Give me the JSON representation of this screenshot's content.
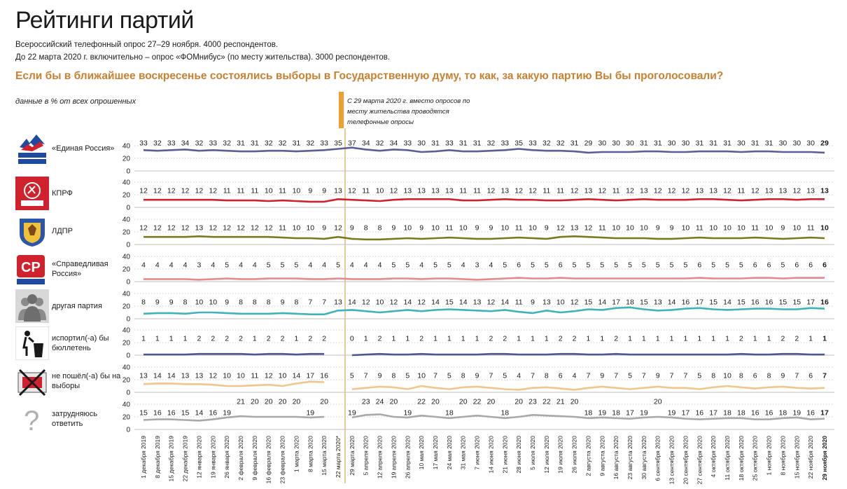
{
  "header": {
    "title": "Рейтинги партий",
    "subtitle_1": "Всероссийский телефонный опрос 27–29 ноября. 4000 респондентов.",
    "subtitle_2": "До 22 марта 2020 г. включительно – опрос «ФОМнибус» (по месту жительства). 3000 респондентов.",
    "question": "Если бы в ближайшее воскресенье состоялись выборы в Государственную думу, то как, за какую партию Вы бы проголосовали?",
    "units": "данные в % от всех опрошенных",
    "method_note": "С 29 марта 2020 г. вместо опросов по месту жительства проводятся телефонные опросы"
  },
  "colors": {
    "vline": "#e8c89a",
    "grid": "#bfbfbf",
    "accent": "#f0a02a"
  },
  "chart_data": {
    "type": "line",
    "x": [
      "1 декабря 2019",
      "8 декабря 2019",
      "15 декабря 2019",
      "22 декабря 2019",
      "12 января 2020",
      "19 января 2020",
      "26 января 2020",
      "2 февраля 2020",
      "9 февраля 2020",
      "16 февраля 2020",
      "23 февраля 2020",
      "1 марта 2020",
      "8 марта 2020",
      "15 марта 2020",
      "22 марта 2020*",
      "29 марта 2020",
      "5 апреля 2020",
      "12 апреля 2020",
      "19 апреля 2020",
      "26 апреля 2020",
      "10 мая 2020",
      "17 мая 2020",
      "24 мая 2020",
      "31 мая 2020",
      "7 июня 2020",
      "14 июня 2020",
      "21 июня 2020",
      "28 июня 2020",
      "5 июля 2020",
      "12 июля 2020",
      "19 июля 2020",
      "26 июля 2020",
      "2 августа 2020",
      "9 августа 2020",
      "16 августа 2020",
      "23 августа 2020",
      "30 августа 2020",
      "6 сентября 2020",
      "13 сентября 2020",
      "20 сентября 2020",
      "27 сентября 2020",
      "4 октября 2020",
      "11 октября 2020",
      "18 октября 2020",
      "25 октября 2020",
      "1 ноября 2020",
      "8 ноября 2020",
      "15 ноября 2020",
      "22 ноября 2020",
      "29 ноября 2020"
    ],
    "break_after": "22 марта 2020*",
    "ylim": [
      0,
      40
    ],
    "yticks": [
      0,
      20,
      40
    ],
    "series": [
      {
        "name": "«Единая Россия»",
        "color": "#5a5f95",
        "icon": "united-russia-logo",
        "values": [
          33,
          32,
          33,
          34,
          32,
          33,
          32,
          31,
          31,
          32,
          32,
          31,
          32,
          33,
          35,
          37,
          34,
          32,
          34,
          33,
          30,
          31,
          33,
          31,
          31,
          32,
          33,
          35,
          33,
          32,
          32,
          31,
          29,
          30,
          30,
          30,
          31,
          31,
          30,
          30,
          31,
          31,
          31,
          30,
          31,
          31,
          30,
          30,
          30,
          29
        ]
      },
      {
        "name": "КПРФ",
        "color": "#d0222c",
        "icon": "kprf-logo",
        "values": [
          12,
          12,
          12,
          12,
          12,
          12,
          11,
          11,
          11,
          10,
          11,
          10,
          9,
          9,
          13,
          12,
          11,
          10,
          12,
          13,
          13,
          13,
          13,
          11,
          11,
          12,
          13,
          12,
          12,
          11,
          11,
          12,
          13,
          12,
          11,
          12,
          13,
          12,
          12,
          12,
          13,
          13,
          12,
          11,
          12,
          13,
          13,
          12,
          13,
          13
        ]
      },
      {
        "name": "ЛДПР",
        "color": "#7a7a1e",
        "icon": "ldpr-logo",
        "values": [
          12,
          12,
          12,
          12,
          13,
          12,
          12,
          12,
          12,
          12,
          11,
          10,
          10,
          9,
          12,
          9,
          8,
          8,
          9,
          10,
          9,
          10,
          11,
          10,
          9,
          9,
          10,
          11,
          10,
          9,
          12,
          13,
          12,
          11,
          10,
          10,
          10,
          9,
          9,
          10,
          11,
          10,
          10,
          10,
          11,
          10,
          9,
          10,
          11,
          10
        ]
      },
      {
        "name": "«Справедливая Россия»",
        "color": "#e88888",
        "icon": "sr-logo",
        "values": [
          4,
          4,
          4,
          4,
          3,
          4,
          5,
          4,
          4,
          5,
          5,
          5,
          4,
          4,
          5,
          4,
          4,
          4,
          5,
          5,
          4,
          5,
          5,
          4,
          3,
          4,
          5,
          6,
          5,
          5,
          6,
          5,
          5,
          5,
          5,
          5,
          5,
          5,
          5,
          5,
          6,
          5,
          5,
          5,
          6,
          6,
          5,
          6,
          6,
          6
        ]
      },
      {
        "name": "другая партия",
        "color": "#3fb3bd",
        "icon": "people-icon",
        "values": [
          8,
          9,
          9,
          8,
          10,
          10,
          9,
          8,
          8,
          8,
          9,
          8,
          7,
          7,
          13,
          14,
          12,
          10,
          12,
          14,
          12,
          14,
          15,
          14,
          13,
          12,
          14,
          11,
          9,
          13,
          10,
          12,
          15,
          14,
          17,
          18,
          15,
          13,
          14,
          16,
          17,
          15,
          14,
          15,
          16,
          16,
          15,
          15,
          17,
          16
        ]
      },
      {
        "name": "испортил(-а) бы бюллетень",
        "color": "#4e5a8e",
        "icon": "trash-icon",
        "values": [
          1,
          1,
          1,
          1,
          2,
          2,
          2,
          2,
          1,
          2,
          2,
          1,
          2,
          2,
          null,
          0,
          1,
          2,
          1,
          1,
          2,
          1,
          1,
          1,
          1,
          2,
          2,
          1,
          1,
          1,
          2,
          2,
          1,
          1,
          2,
          1,
          1,
          1,
          1,
          1,
          1,
          1,
          1,
          2,
          1,
          1,
          2,
          2,
          1,
          1
        ]
      },
      {
        "name": "не пошёл(-а) бы на выборы",
        "color": "#f2c58e",
        "icon": "no-vote-icon",
        "values": [
          13,
          14,
          14,
          13,
          13,
          12,
          10,
          10,
          11,
          12,
          10,
          14,
          17,
          16,
          null,
          5,
          7,
          9,
          8,
          5,
          10,
          7,
          5,
          8,
          9,
          7,
          5,
          4,
          7,
          8,
          6,
          4,
          7,
          9,
          7,
          5,
          7,
          9,
          7,
          7,
          5,
          8,
          10,
          8,
          6,
          8,
          9,
          7,
          6,
          7
        ]
      },
      {
        "name": "затрудняюсь ответить",
        "color": "#a9a9a9",
        "icon": "question-icon",
        "values": [
          15,
          16,
          16,
          15,
          14,
          16,
          19,
          21,
          20,
          20,
          20,
          20,
          19,
          20,
          null,
          19,
          23,
          24,
          20,
          19,
          22,
          20,
          18,
          20,
          22,
          20,
          18,
          20,
          23,
          22,
          21,
          20,
          18,
          19,
          18,
          17,
          19,
          20,
          19,
          17,
          16,
          17,
          18,
          18,
          16,
          16,
          18,
          19,
          16,
          17
        ]
      }
    ]
  }
}
